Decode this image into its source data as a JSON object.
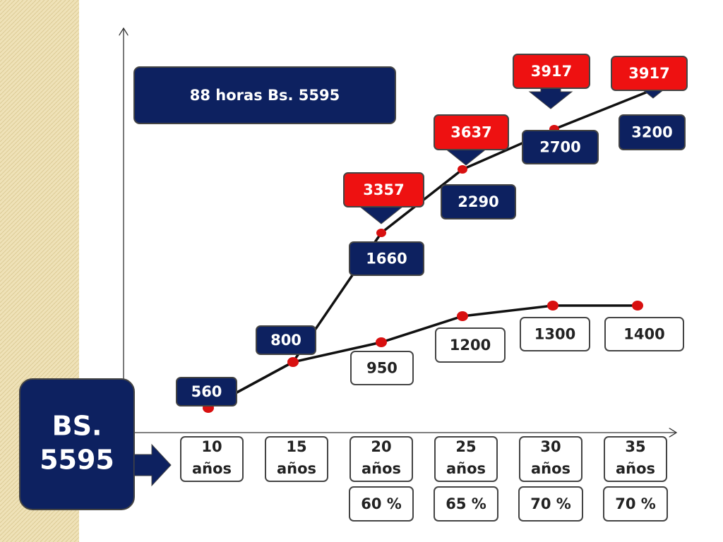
{
  "title_box": "88 horas Bs. 5595",
  "badge": [
    "BS.",
    "5595"
  ],
  "columns": [
    {
      "years": "10",
      "unit": "años",
      "upper": "560",
      "red": null,
      "lower": null,
      "percent": null
    },
    {
      "years": "15",
      "unit": "años",
      "upper": "800",
      "red": null,
      "lower": null,
      "percent": null
    },
    {
      "years": "20",
      "unit": "años",
      "upper": "1660",
      "red": "3357",
      "lower": "950",
      "percent": "60 %"
    },
    {
      "years": "25",
      "unit": "años",
      "upper": "2290",
      "red": "3637",
      "lower": "1200",
      "percent": "65 %"
    },
    {
      "years": "30",
      "unit": "años",
      "upper": "2700",
      "red": "3917",
      "lower": "1300",
      "percent": "70 %"
    },
    {
      "years": "35",
      "unit": "años",
      "upper": "3200",
      "red": "3917",
      "lower": "1400",
      "percent": "70 %"
    }
  ]
}
